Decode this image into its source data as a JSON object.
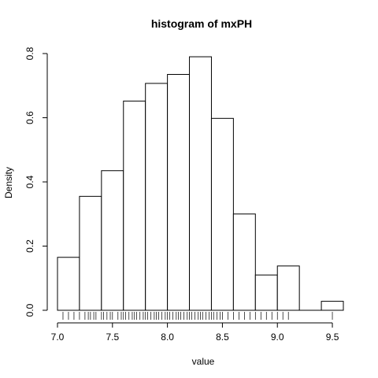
{
  "chart_data": {
    "type": "bar",
    "title": "histogram of mxPH",
    "xlabel": "value",
    "ylabel": "Density",
    "xlim": [
      7.0,
      9.6
    ],
    "ylim": [
      0,
      0.8
    ],
    "x_ticks": [
      "7.0",
      "7.5",
      "8.0",
      "8.5",
      "9.0",
      "9.5"
    ],
    "y_ticks": [
      "0.0",
      "0.2",
      "0.4",
      "0.6",
      "0.8"
    ],
    "bins": [
      {
        "start": 7.0,
        "end": 7.2,
        "density": 0.165
      },
      {
        "start": 7.2,
        "end": 7.4,
        "density": 0.355
      },
      {
        "start": 7.4,
        "end": 7.6,
        "density": 0.435
      },
      {
        "start": 7.6,
        "end": 7.8,
        "density": 0.652
      },
      {
        "start": 7.8,
        "end": 8.0,
        "density": 0.707
      },
      {
        "start": 8.0,
        "end": 8.2,
        "density": 0.735
      },
      {
        "start": 8.2,
        "end": 8.4,
        "density": 0.79
      },
      {
        "start": 8.4,
        "end": 8.6,
        "density": 0.598
      },
      {
        "start": 8.6,
        "end": 8.8,
        "density": 0.3
      },
      {
        "start": 8.8,
        "end": 9.0,
        "density": 0.11
      },
      {
        "start": 9.0,
        "end": 9.2,
        "density": 0.138
      },
      {
        "start": 9.2,
        "end": 9.4,
        "density": 0.0
      },
      {
        "start": 9.4,
        "end": 9.6,
        "density": 0.028
      }
    ],
    "rug_values": [
      7.05,
      7.1,
      7.15,
      7.2,
      7.25,
      7.28,
      7.3,
      7.33,
      7.35,
      7.4,
      7.42,
      7.45,
      7.48,
      7.5,
      7.55,
      7.58,
      7.6,
      7.62,
      7.65,
      7.68,
      7.7,
      7.72,
      7.75,
      7.78,
      7.8,
      7.82,
      7.85,
      7.88,
      7.9,
      7.92,
      7.95,
      7.98,
      8.0,
      8.02,
      8.05,
      8.08,
      8.1,
      8.12,
      8.15,
      8.18,
      8.2,
      8.22,
      8.25,
      8.28,
      8.3,
      8.32,
      8.35,
      8.38,
      8.4,
      8.42,
      8.45,
      8.48,
      8.5,
      8.55,
      8.6,
      8.65,
      8.7,
      8.75,
      8.8,
      8.85,
      8.9,
      8.95,
      9.0,
      9.05,
      9.1,
      9.5
    ],
    "grid": false,
    "legend": "none"
  }
}
